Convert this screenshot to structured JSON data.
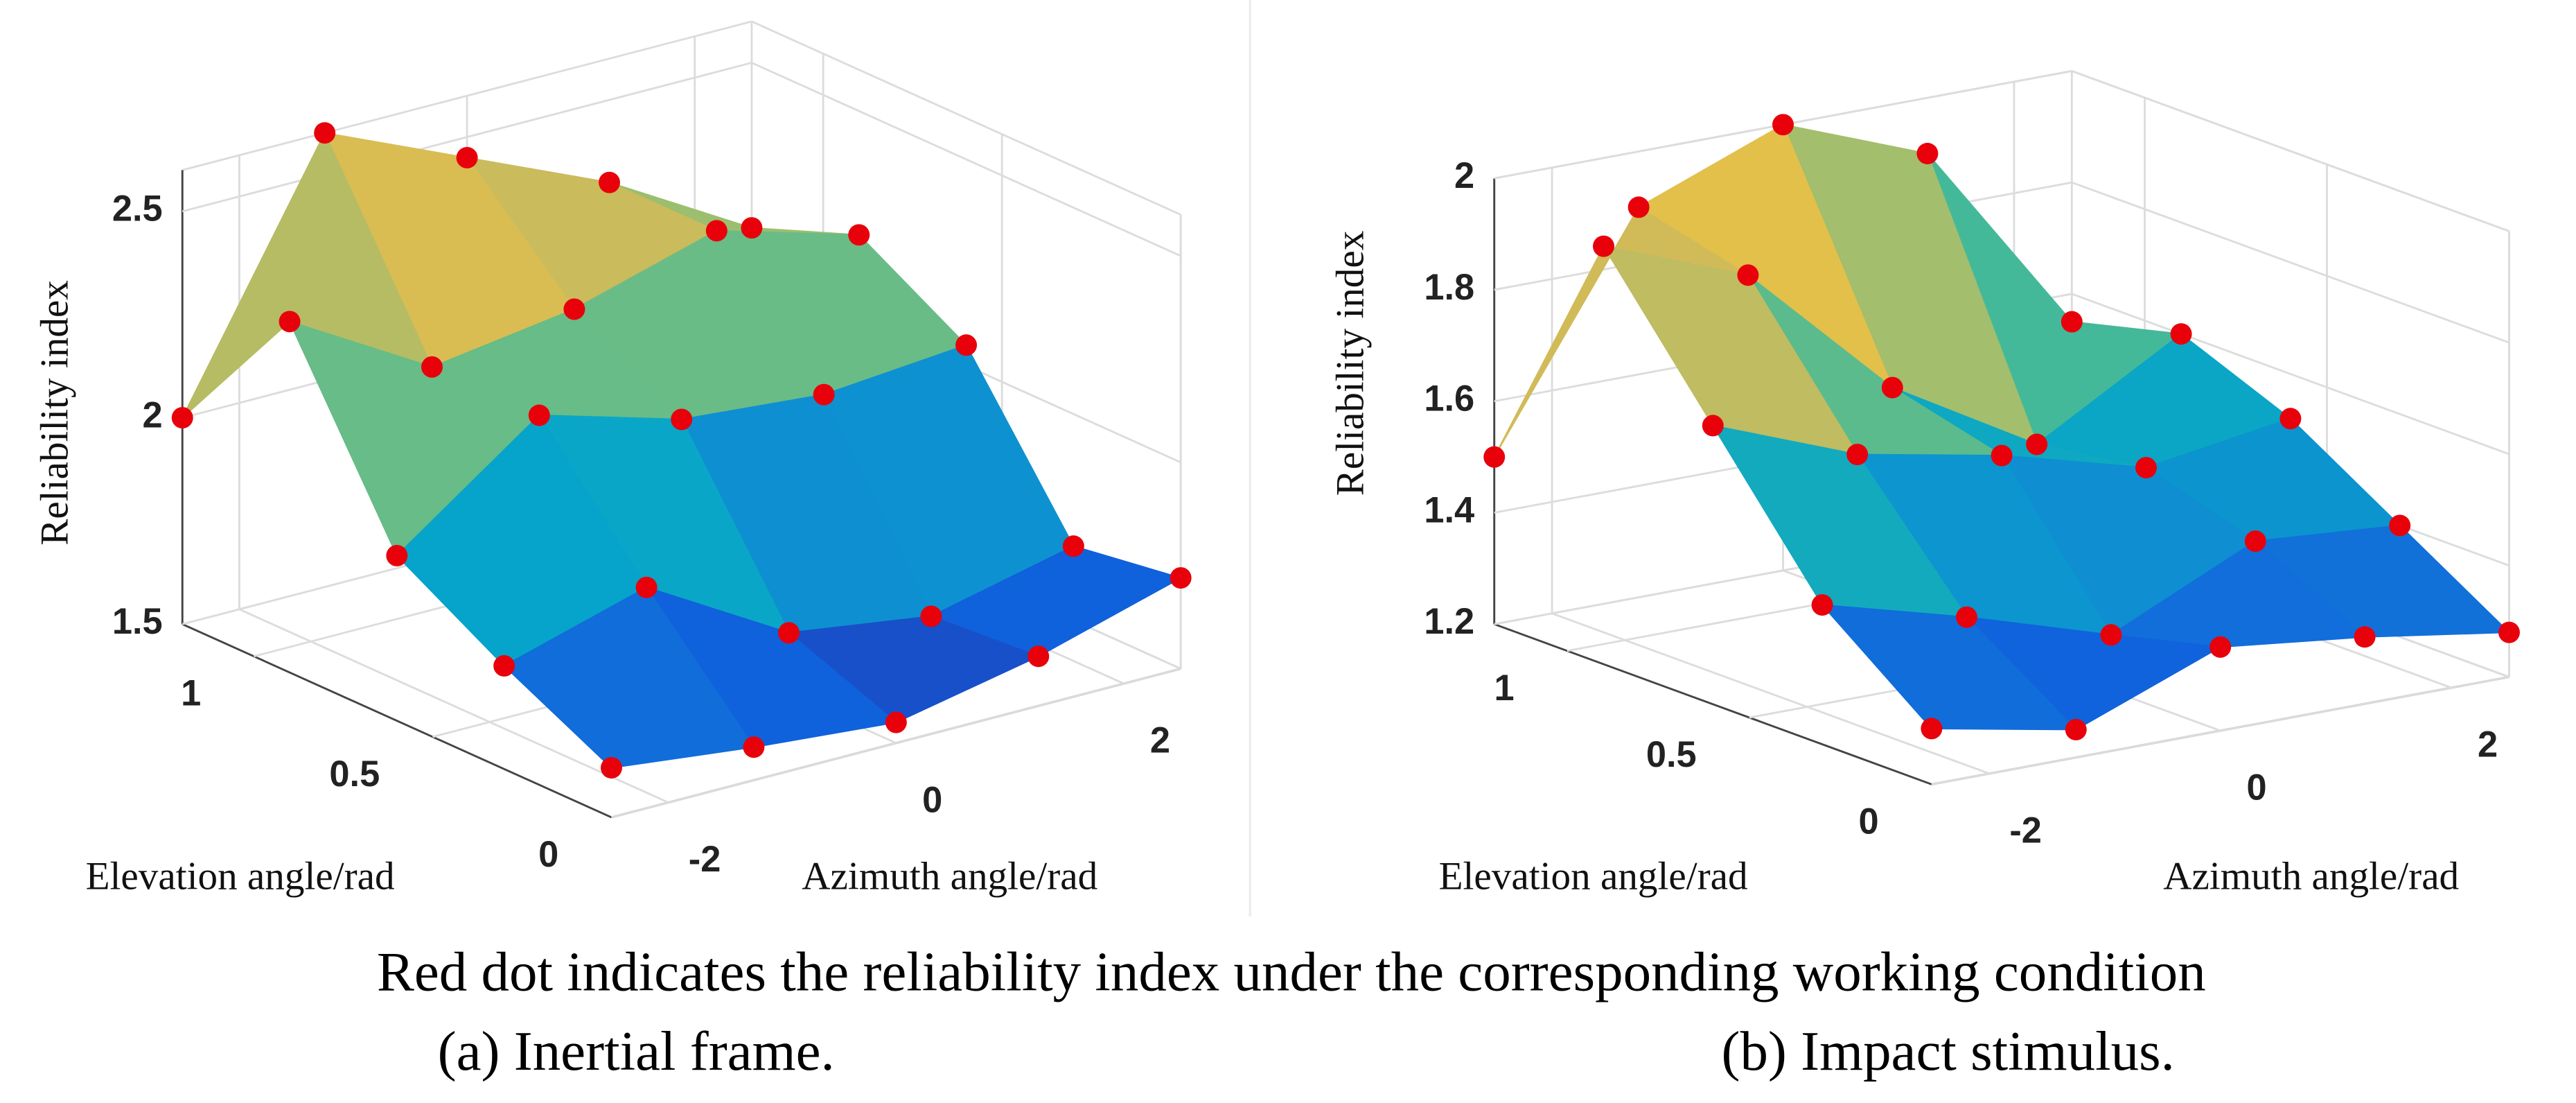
{
  "chart_data": [
    {
      "type": "surface",
      "xlabel": "Azimuth angle/rad",
      "ylabel": "Elevation angle/rad",
      "zlabel": "Reliability index",
      "x": [
        -2.5,
        -1.25,
        0,
        1.25,
        2.5
      ],
      "y": [
        0,
        0.3,
        0.6,
        0.9,
        1.2
      ],
      "z": [
        [
          1.62,
          1.58,
          1.55,
          1.62,
          1.72
        ],
        [
          1.75,
          1.85,
          1.65,
          1.6,
          1.68
        ],
        [
          1.9,
          2.15,
          2.05,
          2.02,
          2.05
        ],
        [
          2.35,
          2.15,
          2.2,
          2.3,
          2.2
        ],
        [
          2.0,
          2.6,
          2.45,
          2.3,
          2.1
        ]
      ],
      "xlim": [
        -2.5,
        2.5
      ],
      "ylim": [
        0,
        1.2
      ],
      "zlim": [
        1.5,
        2.6
      ],
      "xticks": [
        -2,
        0,
        2
      ],
      "yticks": [
        0,
        0.5,
        1
      ],
      "zticks": [
        1.5,
        2,
        2.5
      ],
      "marker_color": "#e8000b",
      "colormap": "parula",
      "grid": true
    },
    {
      "type": "surface",
      "xlabel": "Azimuth angle/rad",
      "ylabel": "Elevation angle/rad",
      "zlabel": "Reliability index",
      "x": [
        -2.5,
        -1.25,
        0,
        1.25,
        2.5
      ],
      "y": [
        0,
        0.3,
        0.6,
        0.9,
        1.2
      ],
      "z": [
        [
          1.3,
          1.25,
          1.35,
          1.32,
          1.28
        ],
        [
          1.45,
          1.38,
          1.3,
          1.42,
          1.4
        ],
        [
          1.7,
          1.6,
          1.55,
          1.48,
          1.52
        ],
        [
          1.95,
          1.85,
          1.6,
          1.45,
          1.6
        ],
        [
          1.5,
          1.9,
          2.0,
          1.9,
          1.55
        ]
      ],
      "xlim": [
        -2.5,
        2.5
      ],
      "ylim": [
        0,
        1.2
      ],
      "zlim": [
        1.2,
        2.0
      ],
      "xticks": [
        -2,
        0,
        2
      ],
      "yticks": [
        0,
        0.5,
        1
      ],
      "zticks": [
        1.2,
        1.4,
        1.6,
        1.8,
        2
      ],
      "marker_color": "#e8000b",
      "colormap": "parula",
      "grid": true
    }
  ],
  "caption": "Red dot indicates the reliability index under the corresponding working condition",
  "subcaptions": [
    "(a) Inertial frame.",
    "(b) Impact stimulus."
  ]
}
